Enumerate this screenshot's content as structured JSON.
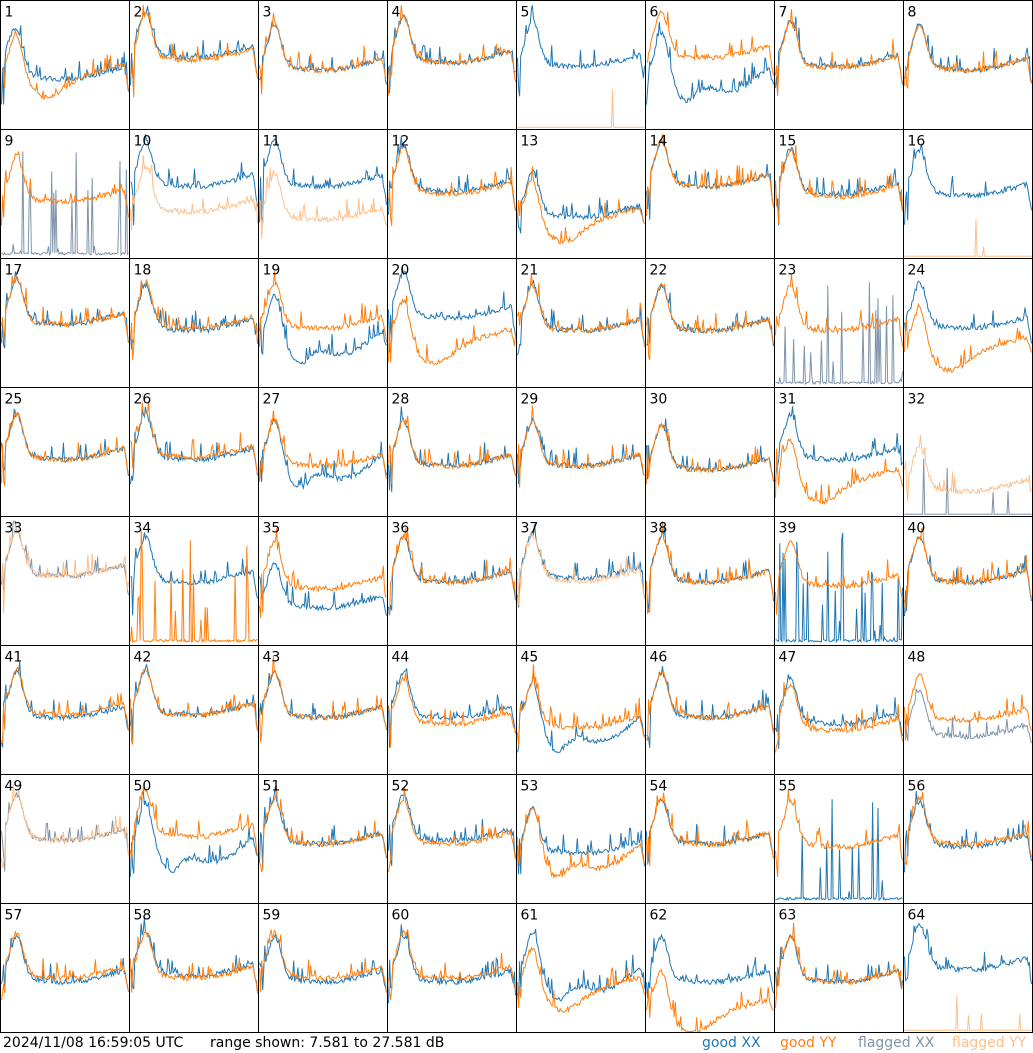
{
  "footer": {
    "timestamp": "2024/11/08 16:59:05 UTC",
    "range_text": "range shown: 7.581 to 27.581 dB"
  },
  "legend": [
    {
      "key": "good_xx",
      "label": "good XX",
      "color": "#1f77b4"
    },
    {
      "key": "good_yy",
      "label": "good YY",
      "color": "#ff7f0e"
    },
    {
      "key": "flagged_xx",
      "label": "flagged XX",
      "color": "#7f94aa"
    },
    {
      "key": "flagged_yy",
      "label": "flagged YY",
      "color": "#ffbf8a"
    }
  ],
  "chart_data": {
    "type": "line",
    "layout": "small-multiples 8x8",
    "ylim": [
      7.581,
      27.581
    ],
    "yunit": "dB",
    "grid": false,
    "legend_placement": "bottom-right",
    "panels": [
      {
        "label": "1",
        "xx": "good",
        "yy": "good",
        "xx_shape": "steep",
        "yy_shape": "dip",
        "xx_level": 0.45,
        "yy_level": 0.48
      },
      {
        "label": "2",
        "xx": "good",
        "yy": "good",
        "xx_shape": "normal",
        "yy_shape": "normal",
        "xx_level": 0.62,
        "yy_level": 0.6
      },
      {
        "label": "3",
        "xx": "good",
        "yy": "good",
        "xx_shape": "normal",
        "yy_shape": "normal",
        "xx_level": 0.52,
        "yy_level": 0.52
      },
      {
        "label": "4",
        "xx": "good",
        "yy": "good",
        "xx_shape": "normal",
        "yy_shape": "normal",
        "xx_level": 0.58,
        "yy_level": 0.58
      },
      {
        "label": "5",
        "xx": "good",
        "yy": "flagged",
        "xx_shape": "normal",
        "yy_shape": "floor",
        "xx_level": 0.55,
        "yy_level": 0.02
      },
      {
        "label": "6",
        "xx": "good",
        "yy": "good",
        "xx_shape": "wavy",
        "yy_shape": "normal",
        "xx_level": 0.42,
        "yy_level": 0.62
      },
      {
        "label": "7",
        "xx": "good",
        "yy": "good",
        "xx_shape": "normal",
        "yy_shape": "normal",
        "xx_level": 0.55,
        "yy_level": 0.54
      },
      {
        "label": "8",
        "xx": "good",
        "yy": "good",
        "xx_shape": "normal",
        "yy_shape": "normal",
        "xx_level": 0.52,
        "yy_level": 0.52
      },
      {
        "label": "9",
        "xx": "flagged",
        "yy": "good",
        "xx_shape": "spiky-low",
        "yy_shape": "normal",
        "xx_level": 0.05,
        "yy_level": 0.5
      },
      {
        "label": "10",
        "xx": "good",
        "yy": "flagged",
        "xx_shape": "normal",
        "yy_shape": "normal",
        "xx_level": 0.62,
        "yy_level": 0.42
      },
      {
        "label": "11",
        "xx": "good",
        "yy": "flagged",
        "xx_shape": "normal",
        "yy_shape": "normal",
        "xx_level": 0.62,
        "yy_level": 0.36
      },
      {
        "label": "12",
        "xx": "good",
        "yy": "good",
        "xx_shape": "normal",
        "yy_shape": "normal",
        "xx_level": 0.58,
        "yy_level": 0.56
      },
      {
        "label": "13",
        "xx": "good",
        "yy": "good",
        "xx_shape": "normal",
        "yy_shape": "dip",
        "xx_level": 0.38,
        "yy_level": 0.36
      },
      {
        "label": "14",
        "xx": "good",
        "yy": "good",
        "xx_shape": "normal",
        "yy_shape": "normal",
        "xx_level": 0.62,
        "yy_level": 0.62
      },
      {
        "label": "15",
        "xx": "good",
        "yy": "good",
        "xx_shape": "normal",
        "yy_shape": "normal",
        "xx_level": 0.56,
        "yy_level": 0.54
      },
      {
        "label": "16",
        "xx": "good",
        "yy": "flagged",
        "xx_shape": "normal",
        "yy_shape": "floor",
        "xx_level": 0.55,
        "yy_level": 0.02
      },
      {
        "label": "17",
        "xx": "good",
        "yy": "good",
        "xx_shape": "normal",
        "yy_shape": "normal",
        "xx_level": 0.55,
        "yy_level": 0.55
      },
      {
        "label": "18",
        "xx": "good",
        "yy": "good",
        "xx_shape": "normal",
        "yy_shape": "normal",
        "xx_level": 0.5,
        "yy_level": 0.52
      },
      {
        "label": "19",
        "xx": "good",
        "yy": "good",
        "xx_shape": "wavy",
        "yy_shape": "normal",
        "xx_level": 0.38,
        "yy_level": 0.52
      },
      {
        "label": "20",
        "xx": "good",
        "yy": "good",
        "xx_shape": "normal",
        "yy_shape": "dip",
        "xx_level": 0.6,
        "yy_level": 0.42
      },
      {
        "label": "21",
        "xx": "good",
        "yy": "good",
        "xx_shape": "normal",
        "yy_shape": "normal",
        "xx_level": 0.5,
        "yy_level": 0.5
      },
      {
        "label": "22",
        "xx": "good",
        "yy": "good",
        "xx_shape": "normal",
        "yy_shape": "normal",
        "xx_level": 0.5,
        "yy_level": 0.5
      },
      {
        "label": "23",
        "xx": "flagged",
        "yy": "good",
        "xx_shape": "spiky-low",
        "yy_shape": "normal",
        "xx_level": 0.05,
        "yy_level": 0.5
      },
      {
        "label": "24",
        "xx": "good",
        "yy": "good",
        "xx_shape": "normal",
        "yy_shape": "dip",
        "xx_level": 0.52,
        "yy_level": 0.36
      },
      {
        "label": "25",
        "xx": "good",
        "yy": "good",
        "xx_shape": "normal",
        "yy_shape": "normal",
        "xx_level": 0.5,
        "yy_level": 0.5
      },
      {
        "label": "26",
        "xx": "good",
        "yy": "good",
        "xx_shape": "normal",
        "yy_shape": "normal",
        "xx_level": 0.5,
        "yy_level": 0.52
      },
      {
        "label": "27",
        "xx": "good",
        "yy": "good",
        "xx_shape": "wavy",
        "yy_shape": "normal",
        "xx_level": 0.42,
        "yy_level": 0.45
      },
      {
        "label": "28",
        "xx": "good",
        "yy": "good",
        "xx_shape": "normal",
        "yy_shape": "normal",
        "xx_level": 0.45,
        "yy_level": 0.45
      },
      {
        "label": "29",
        "xx": "good",
        "yy": "good",
        "xx_shape": "normal",
        "yy_shape": "normal",
        "xx_level": 0.45,
        "yy_level": 0.45
      },
      {
        "label": "30",
        "xx": "good",
        "yy": "good",
        "xx_shape": "normal",
        "yy_shape": "normal",
        "xx_level": 0.42,
        "yy_level": 0.42
      },
      {
        "label": "31",
        "xx": "good",
        "yy": "good",
        "xx_shape": "normal",
        "yy_shape": "dip",
        "xx_level": 0.5,
        "yy_level": 0.34
      },
      {
        "label": "32",
        "xx": "flagged",
        "yy": "flagged",
        "xx_shape": "floor",
        "yy_shape": "normal",
        "xx_level": 0.02,
        "yy_level": 0.25
      },
      {
        "label": "33",
        "xx": "flagged",
        "yy": "flagged",
        "xx_shape": "normal",
        "yy_shape": "normal",
        "xx_level": 0.6,
        "yy_level": 0.6
      },
      {
        "label": "34",
        "xx": "good",
        "yy": "good",
        "xx_shape": "normal",
        "yy_shape": "spiky-low",
        "xx_level": 0.55,
        "yy_level": 0.05
      },
      {
        "label": "35",
        "xx": "good",
        "yy": "good",
        "xx_shape": "normal",
        "yy_shape": "normal",
        "xx_level": 0.35,
        "yy_level": 0.5
      },
      {
        "label": "36",
        "xx": "good",
        "yy": "good",
        "xx_shape": "normal",
        "yy_shape": "normal",
        "xx_level": 0.55,
        "yy_level": 0.55
      },
      {
        "label": "37",
        "xx": "good",
        "yy": "flagged",
        "xx_shape": "normal",
        "yy_shape": "normal",
        "xx_level": 0.58,
        "yy_level": 0.56
      },
      {
        "label": "38",
        "xx": "good",
        "yy": "good",
        "xx_shape": "normal",
        "yy_shape": "normal",
        "xx_level": 0.55,
        "yy_level": 0.55
      },
      {
        "label": "39",
        "xx": "good",
        "yy": "good",
        "xx_shape": "spiky-low",
        "yy_shape": "normal",
        "xx_level": 0.05,
        "yy_level": 0.52
      },
      {
        "label": "40",
        "xx": "good",
        "yy": "good",
        "xx_shape": "normal",
        "yy_shape": "normal",
        "xx_level": 0.55,
        "yy_level": 0.55
      },
      {
        "label": "41",
        "xx": "good",
        "yy": "good",
        "xx_shape": "normal",
        "yy_shape": "normal",
        "xx_level": 0.5,
        "yy_level": 0.52
      },
      {
        "label": "42",
        "xx": "good",
        "yy": "good",
        "xx_shape": "normal",
        "yy_shape": "normal",
        "xx_level": 0.52,
        "yy_level": 0.52
      },
      {
        "label": "43",
        "xx": "good",
        "yy": "good",
        "xx_shape": "normal",
        "yy_shape": "normal",
        "xx_level": 0.5,
        "yy_level": 0.5
      },
      {
        "label": "44",
        "xx": "good",
        "yy": "good",
        "xx_shape": "normal",
        "yy_shape": "normal",
        "xx_level": 0.5,
        "yy_level": 0.45
      },
      {
        "label": "45",
        "xx": "good",
        "yy": "good",
        "xx_shape": "wavy",
        "yy_shape": "normal",
        "xx_level": 0.38,
        "yy_level": 0.42
      },
      {
        "label": "46",
        "xx": "good",
        "yy": "good",
        "xx_shape": "normal",
        "yy_shape": "normal",
        "xx_level": 0.5,
        "yy_level": 0.5
      },
      {
        "label": "47",
        "xx": "good",
        "yy": "good",
        "xx_shape": "normal",
        "yy_shape": "normal",
        "xx_level": 0.45,
        "yy_level": 0.4
      },
      {
        "label": "48",
        "xx": "flagged",
        "yy": "good",
        "xx_shape": "normal",
        "yy_shape": "normal",
        "xx_level": 0.35,
        "yy_level": 0.48
      },
      {
        "label": "49",
        "xx": "flagged",
        "yy": "flagged",
        "xx_shape": "normal",
        "yy_shape": "normal",
        "xx_level": 0.55,
        "yy_level": 0.55
      },
      {
        "label": "50",
        "xx": "good",
        "yy": "good",
        "xx_shape": "wavy",
        "yy_shape": "normal",
        "xx_level": 0.45,
        "yy_level": 0.58
      },
      {
        "label": "51",
        "xx": "good",
        "yy": "good",
        "xx_shape": "normal",
        "yy_shape": "normal",
        "xx_level": 0.52,
        "yy_level": 0.52
      },
      {
        "label": "52",
        "xx": "good",
        "yy": "good",
        "xx_shape": "normal",
        "yy_shape": "normal",
        "xx_level": 0.55,
        "yy_level": 0.52
      },
      {
        "label": "53",
        "xx": "good",
        "yy": "good",
        "xx_shape": "normal",
        "yy_shape": "wavy",
        "xx_level": 0.45,
        "yy_level": 0.4
      },
      {
        "label": "54",
        "xx": "good",
        "yy": "good",
        "xx_shape": "normal",
        "yy_shape": "normal",
        "xx_level": 0.52,
        "yy_level": 0.52
      },
      {
        "label": "55",
        "xx": "good",
        "yy": "good",
        "xx_shape": "spiky-low",
        "yy_shape": "normal",
        "xx_level": 0.05,
        "yy_level": 0.5
      },
      {
        "label": "56",
        "xx": "good",
        "yy": "good",
        "xx_shape": "normal",
        "yy_shape": "normal",
        "xx_level": 0.5,
        "yy_level": 0.52
      },
      {
        "label": "57",
        "xx": "good",
        "yy": "good",
        "xx_shape": "normal",
        "yy_shape": "normal",
        "xx_level": 0.45,
        "yy_level": 0.48
      },
      {
        "label": "58",
        "xx": "good",
        "yy": "good",
        "xx_shape": "normal",
        "yy_shape": "normal",
        "xx_level": 0.5,
        "yy_level": 0.48
      },
      {
        "label": "59",
        "xx": "good",
        "yy": "good",
        "xx_shape": "normal",
        "yy_shape": "normal",
        "xx_level": 0.45,
        "yy_level": 0.48
      },
      {
        "label": "60",
        "xx": "good",
        "yy": "good",
        "xx_shape": "normal",
        "yy_shape": "normal",
        "xx_level": 0.45,
        "yy_level": 0.48
      },
      {
        "label": "61",
        "xx": "good",
        "yy": "good",
        "xx_shape": "wavy",
        "yy_shape": "dip",
        "xx_level": 0.45,
        "yy_level": 0.4
      },
      {
        "label": "62",
        "xx": "good",
        "yy": "good",
        "xx_shape": "normal",
        "yy_shape": "dip",
        "xx_level": 0.45,
        "yy_level": 0.22
      },
      {
        "label": "63",
        "xx": "good",
        "yy": "good",
        "xx_shape": "normal",
        "yy_shape": "normal",
        "xx_level": 0.45,
        "yy_level": 0.45
      },
      {
        "label": "64",
        "xx": "good",
        "yy": "flagged",
        "xx_shape": "normal",
        "yy_shape": "floor",
        "xx_level": 0.55,
        "yy_level": 0.02
      }
    ]
  }
}
